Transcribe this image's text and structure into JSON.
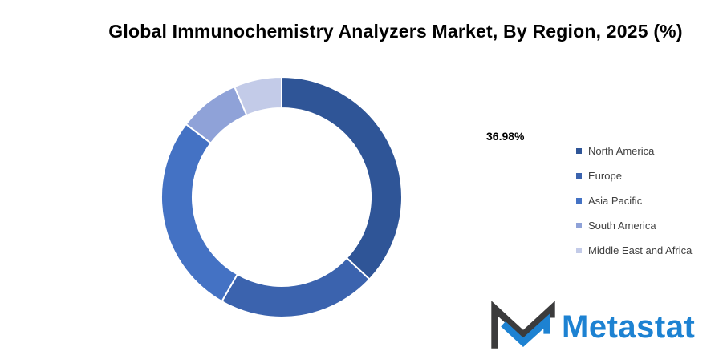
{
  "header": {
    "title": "Global Immunochemistry Analyzers Market, By Region, 2025 (%)"
  },
  "chart_data": {
    "type": "pie",
    "subtype": "donut",
    "title": "Global Immunochemistry Analyzers Market, By Region, 2025 (%)",
    "unit": "%",
    "categories": [
      "North America",
      "Europe",
      "Asia Pacific",
      "South America",
      "Middle East and Africa"
    ],
    "values": [
      36.98,
      21.3,
      27.1,
      8.2,
      6.42
    ],
    "colors": [
      "#2F5597",
      "#3B63AE",
      "#4472C4",
      "#8FA2D8",
      "#C3CBE8"
    ],
    "labeled_value": "36.98%",
    "labeled_category": "North America",
    "start_angle_deg": 0,
    "direction": "clockwise",
    "inner_radius_ratio": 0.74,
    "separator_color": "#ffffff",
    "legend_position": "right"
  },
  "legend": {
    "items": [
      {
        "label": "North America",
        "color": "#2F5597"
      },
      {
        "label": "Europe",
        "color": "#3B63AE"
      },
      {
        "label": "Asia Pacific",
        "color": "#4472C4"
      },
      {
        "label": "South America",
        "color": "#8FA2D8"
      },
      {
        "label": "Middle East and Africa",
        "color": "#C3CBE8"
      }
    ]
  },
  "logo": {
    "text": "Metastat",
    "text_color": "#1D82D2",
    "mark_dark_color": "#3B3B3C",
    "mark_blue_color": "#1D82D2"
  }
}
